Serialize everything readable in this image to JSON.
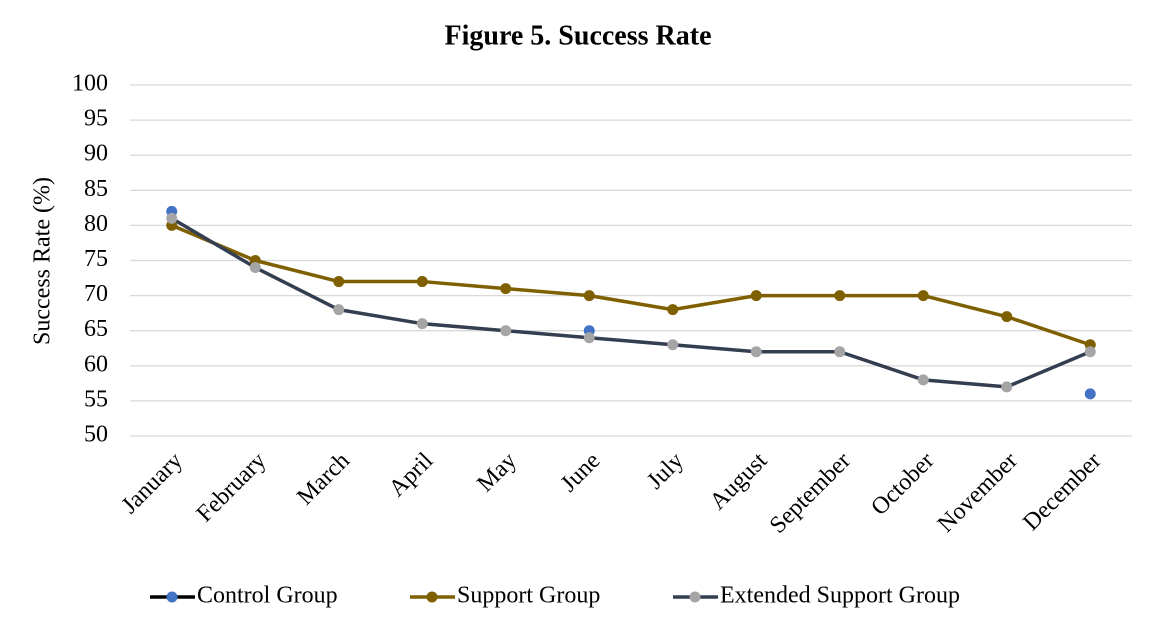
{
  "chart_data": {
    "type": "line",
    "title": "Figure 5. Success Rate",
    "y_label": "Success Rate (%)",
    "categories": [
      "January",
      "February",
      "March",
      "April",
      "May",
      "June",
      "July",
      "August",
      "September",
      "October",
      "November",
      "December"
    ],
    "series": [
      {
        "name": "Control Group",
        "color": "#000000",
        "marker_color": "#4472c4",
        "values": [
          82,
          null,
          null,
          null,
          null,
          65,
          null,
          null,
          null,
          null,
          null,
          56
        ]
      },
      {
        "name": "Support Group",
        "color": "#7f6000",
        "marker_color": "#7f6000",
        "values": [
          80,
          75,
          72,
          72,
          71,
          70,
          68,
          70,
          70,
          70,
          67,
          63
        ]
      },
      {
        "name": "Extended Support Group",
        "color": "#333f50",
        "marker_color": "#a5a5a5",
        "values": [
          81,
          74,
          68,
          66,
          65,
          64,
          63,
          62,
          62,
          58,
          57,
          62
        ]
      }
    ],
    "ylim": [
      50,
      100
    ],
    "yticks": [
      50,
      55,
      60,
      65,
      70,
      75,
      80,
      85,
      90,
      95,
      100
    ],
    "grid": true,
    "legend": "bottom"
  }
}
